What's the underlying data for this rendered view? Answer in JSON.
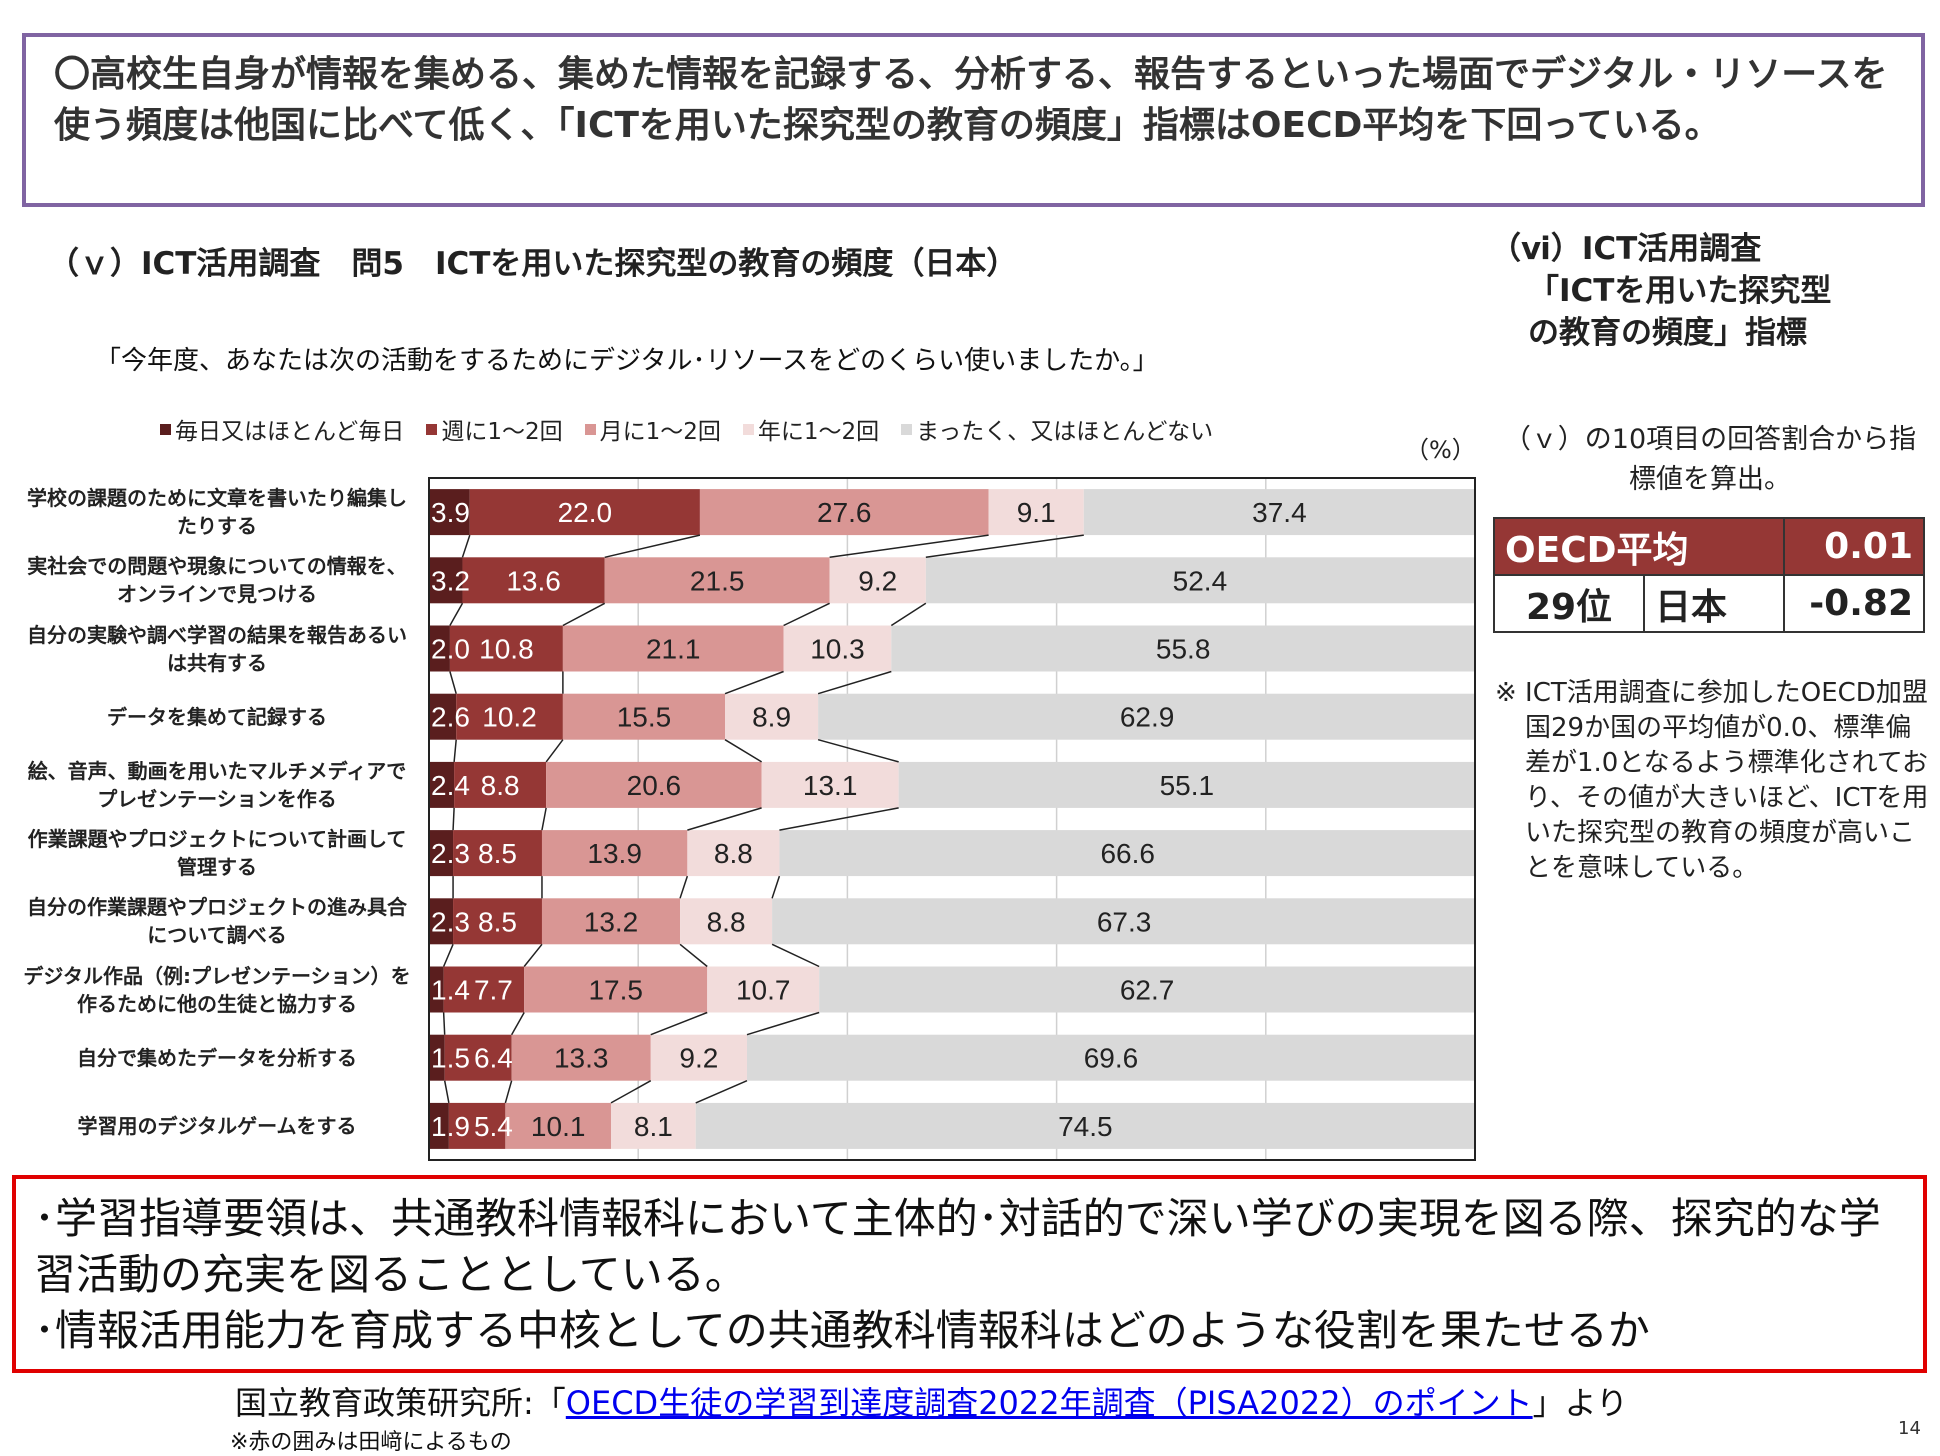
{
  "headline": "〇高校生自身が情報を集める、集めた情報を記録する、分析する、報告するといった場面でデジタル・リソースを使う頻度は他国に比べて低く、「ICTを用いた探究型の教育の頻度」指標はOECD平均を下回っている。",
  "subtitle": "（ｖ）ICT活用調査　問5　ICTを用いた探究型の教育の頻度（日本）",
  "question": "「今年度、あなたは次の活動をするためにデジタル･リソースをどのくらい使いましたか。」",
  "unit": "（%）",
  "chart_data": {
    "type": "bar",
    "stacked": true,
    "orientation": "horizontal",
    "xlim": [
      0,
      100
    ],
    "grid": true,
    "legend": "top",
    "categories": [
      "学校の課題のために文章を書いたり編集したりする",
      "実社会での問題や現象についての情報を、オンラインで見つける",
      "自分の実験や調べ学習の結果を報告あるいは共有する",
      "データを集めて記録する",
      "絵、音声、動画を用いたマルチメディアでプレゼンテーションを作る",
      "作業課題やプロジェクトについて計画して管理する",
      "自分の作業課題やプロジェクトの進み具合について調べる",
      "デジタル作品（例:プレゼンテーション）を作るために他の生徒と協力する",
      "自分で集めたデータを分析する",
      "学習用のデジタルゲームをする"
    ],
    "series": [
      {
        "name": "毎日又はほとんど毎日",
        "color": "#5a1e1e",
        "values": [
          3.9,
          3.2,
          2.0,
          2.6,
          2.4,
          2.3,
          2.3,
          1.4,
          1.5,
          1.9
        ]
      },
      {
        "name": "週に1～2回",
        "color": "#953735",
        "values": [
          22.0,
          13.6,
          10.8,
          10.2,
          8.8,
          8.5,
          8.5,
          7.7,
          6.4,
          5.4
        ]
      },
      {
        "name": "月に1～2回",
        "color": "#d99694",
        "values": [
          27.6,
          21.5,
          21.1,
          15.5,
          20.6,
          13.9,
          13.2,
          17.5,
          13.3,
          10.1
        ]
      },
      {
        "name": "年に1～2回",
        "color": "#f2dcdb",
        "values": [
          9.1,
          9.2,
          10.3,
          8.9,
          13.1,
          8.8,
          8.8,
          10.7,
          9.2,
          8.1
        ]
      },
      {
        "name": "まったく、又はほとんどない",
        "color": "#d9d9d9",
        "values": [
          37.4,
          52.4,
          55.8,
          62.9,
          55.1,
          66.6,
          67.3,
          62.7,
          69.6,
          74.5
        ]
      }
    ]
  },
  "right": {
    "title": [
      "（ⅵ）ICT活用調査",
      "「ICTを用いた探究型",
      "の教育の頻度」指標"
    ],
    "desc": "（ｖ）の10項目の回答割合から指標値を算出。",
    "table": {
      "oecd_label": "OECD平均",
      "oecd_value": "0.01",
      "rank": "29位",
      "country": "日本",
      "value": "-0.82"
    },
    "note": "※ ICT活用調査に参加したOECD加盟国29か国の平均値が0.0、標準偏差が1.0となるよう標準化されており、その値が大きいほど、ICTを用いた探究型の教育の頻度が高いことを意味している。"
  },
  "redbox": [
    "･学習指導要領は、共通教科情報科において主体的･対話的で深い学びの実現を図る際、探究的な学習活動の充実を図ることとしている。",
    "･情報活用能力を育成する中核としての共通教科情報科はどのような役割を果たせるか"
  ],
  "source": {
    "prefix": "国立教育政策研究所:「",
    "link": "OECD生徒の学習到達度調査2022年調査（PISA2022）のポイント",
    "suffix": "」より"
  },
  "source_note": "※赤の囲みは田﨑によるもの",
  "page_number": "14"
}
